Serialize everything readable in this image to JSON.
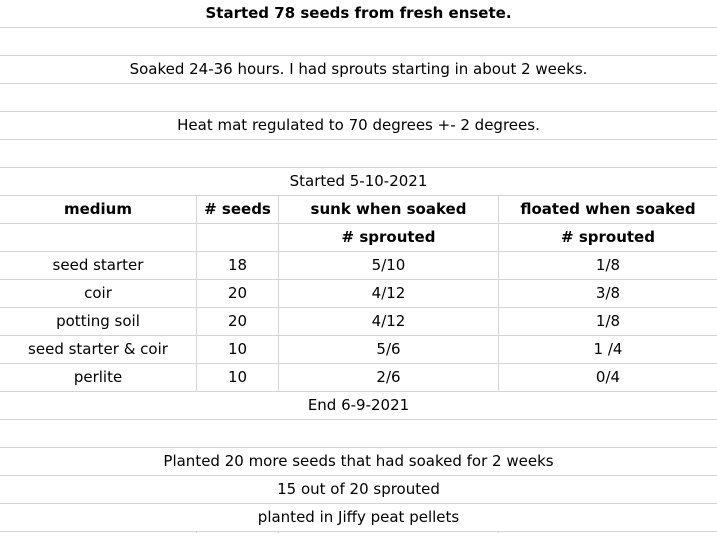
{
  "title": "Started 78 seeds from fresh ensete.",
  "notes": {
    "soak": "Soaked 24-36 hours. I had sprouts starting in about 2 weeks.",
    "heat": "Heat mat regulated to 70 degrees +- 2 degrees.",
    "started": "Started 5-10-2021",
    "end": "End 6-9-2021"
  },
  "table": {
    "headers": [
      "medium",
      "# seeds",
      "sunk when soaked",
      "floated when soaked"
    ],
    "subheaders": [
      "",
      "",
      "# sprouted",
      "# sprouted"
    ],
    "rows": [
      [
        "seed starter",
        "18",
        "5/10",
        "1/8"
      ],
      [
        "coir",
        "20",
        "4/12",
        "3/8"
      ],
      [
        "potting soil",
        "20",
        "4/12",
        "1/8"
      ],
      [
        "seed starter & coir",
        "10",
        "5/6",
        "1 /4"
      ],
      [
        "perlite",
        "10",
        "2/6",
        "0/4"
      ]
    ]
  },
  "followup": {
    "line1": "Planted 20 more seeds that had soaked for 2 weeks",
    "line2": "15 out of 20 sprouted",
    "line3": "planted in Jiffy peat pellets"
  }
}
